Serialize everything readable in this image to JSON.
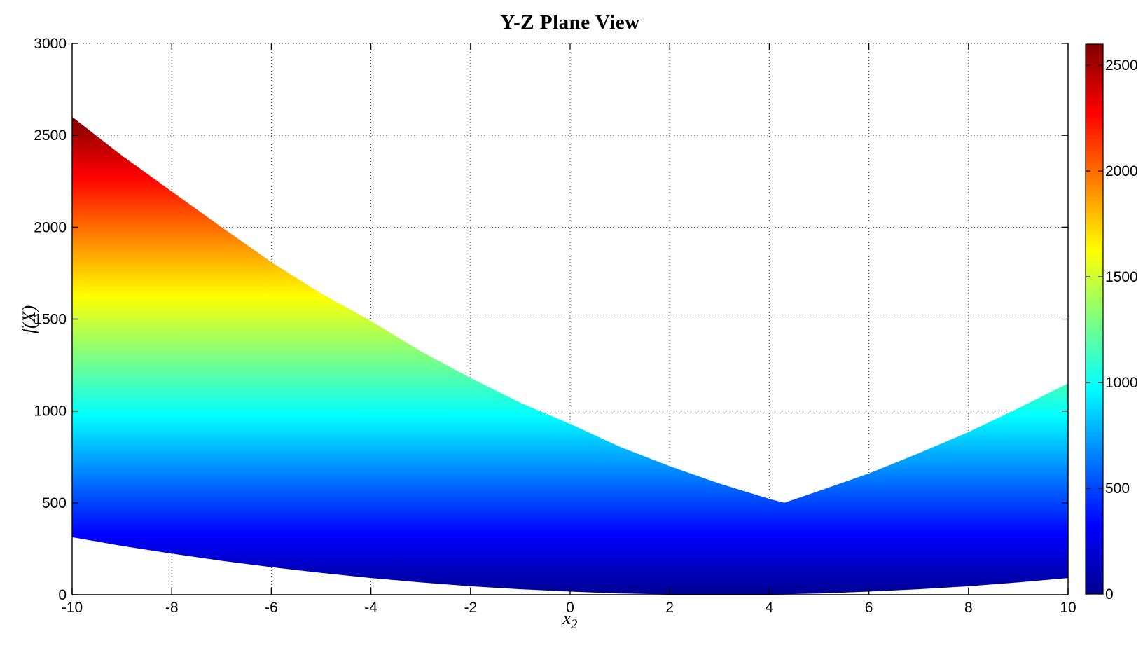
{
  "title": "Y-Z Plane View",
  "xlabel_base": "x",
  "xlabel_sub": "2",
  "ylabel": "f(X)",
  "chart_data": {
    "type": "area",
    "title": "Y-Z Plane View",
    "xlabel": "x_2",
    "ylabel": "f(X)",
    "xlim": [
      -10,
      10
    ],
    "ylim": [
      0,
      3000
    ],
    "xticks": [
      -10,
      -8,
      -6,
      -4,
      -2,
      0,
      2,
      4,
      6,
      8,
      10
    ],
    "yticks": [
      0,
      500,
      1000,
      1500,
      2000,
      2500,
      3000
    ],
    "grid": true,
    "grid_style": "dotted",
    "axis_color": "#000000",
    "background_color": "#ffffff",
    "colormap": "jet",
    "color_range": [
      0,
      2600
    ],
    "colormap_stops": [
      {
        "offset": 0.0,
        "color": "#000090"
      },
      {
        "offset": 0.125,
        "color": "#0000ff"
      },
      {
        "offset": 0.375,
        "color": "#00ffff"
      },
      {
        "offset": 0.625,
        "color": "#ffff00"
      },
      {
        "offset": 0.875,
        "color": "#ff0000"
      },
      {
        "offset": 1.0,
        "color": "#800000"
      }
    ],
    "colorbar": {
      "position": "right",
      "ticks": [
        0,
        500,
        1000,
        1500,
        2000,
        2500
      ]
    },
    "band": {
      "comment_visible_content": "projected surface band: for each x2 the filled region spans bottom..top in f(X), colored by f value with jet colormap",
      "x": [
        -10,
        -9,
        -8,
        -7,
        -6,
        -5,
        -4,
        -3,
        -2,
        -1,
        0,
        1,
        2,
        3,
        4,
        4.3,
        5,
        6,
        7,
        8,
        9,
        10
      ],
      "top": [
        2600,
        2390,
        2195,
        2000,
        1810,
        1640,
        1490,
        1325,
        1180,
        1045,
        930,
        805,
        700,
        605,
        522,
        500,
        565,
        660,
        770,
        885,
        1015,
        1150
      ],
      "bottom": [
        313,
        266,
        224,
        185,
        150,
        119,
        91,
        67,
        46,
        30,
        17,
        7,
        2,
        0,
        2,
        3,
        7,
        17,
        30,
        46,
        67,
        91
      ]
    }
  }
}
